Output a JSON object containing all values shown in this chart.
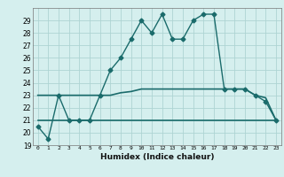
{
  "xlabel": "Humidex (Indice chaleur)",
  "background_color": "#d5efee",
  "grid_color": "#aed4d3",
  "line_color": "#1a6b6b",
  "xlim": [
    -0.5,
    23.5
  ],
  "ylim": [
    19,
    30
  ],
  "yticks": [
    19,
    20,
    21,
    22,
    23,
    24,
    25,
    26,
    27,
    28,
    29
  ],
  "xticks": [
    0,
    1,
    2,
    3,
    4,
    5,
    6,
    7,
    8,
    9,
    10,
    11,
    12,
    13,
    14,
    15,
    16,
    17,
    18,
    19,
    20,
    21,
    22,
    23
  ],
  "series": [
    {
      "x": [
        0,
        1,
        2,
        3,
        4,
        5,
        6,
        7,
        8,
        9,
        10,
        11,
        12,
        13,
        14,
        15,
        16,
        17,
        18,
        19,
        20,
        21,
        22,
        23
      ],
      "y": [
        20.5,
        19.5,
        23.0,
        21.0,
        21.0,
        21.0,
        23.0,
        25.0,
        26.0,
        27.5,
        29.0,
        28.0,
        29.5,
        27.5,
        27.5,
        29.0,
        29.5,
        29.5,
        23.5,
        23.5,
        23.5,
        23.0,
        22.5,
        21.0
      ],
      "marker": "D",
      "markersize": 2.5,
      "linewidth": 1.0
    },
    {
      "x": [
        0,
        1,
        2,
        3,
        4,
        5,
        6,
        7,
        8,
        9,
        10,
        11,
        12,
        13,
        14,
        15,
        16,
        17,
        18,
        19,
        20,
        21,
        22,
        23
      ],
      "y": [
        23.0,
        23.0,
        23.0,
        23.0,
        23.0,
        23.0,
        23.0,
        23.0,
        23.2,
        23.3,
        23.5,
        23.5,
        23.5,
        23.5,
        23.5,
        23.5,
        23.5,
        23.5,
        23.5,
        23.5,
        23.5,
        23.0,
        22.8,
        21.0
      ],
      "marker": null,
      "markersize": 0,
      "linewidth": 1.2
    },
    {
      "x": [
        0,
        1,
        2,
        3,
        4,
        5,
        6,
        7,
        8,
        9,
        10,
        11,
        12,
        13,
        14,
        15,
        16,
        17,
        18,
        19,
        20,
        21,
        22,
        23
      ],
      "y": [
        21.0,
        21.0,
        21.0,
        21.0,
        21.0,
        21.0,
        21.0,
        21.0,
        21.0,
        21.0,
        21.0,
        21.0,
        21.0,
        21.0,
        21.0,
        21.0,
        21.0,
        21.0,
        21.0,
        21.0,
        21.0,
        21.0,
        21.0,
        21.0
      ],
      "marker": null,
      "markersize": 0,
      "linewidth": 1.2
    }
  ]
}
